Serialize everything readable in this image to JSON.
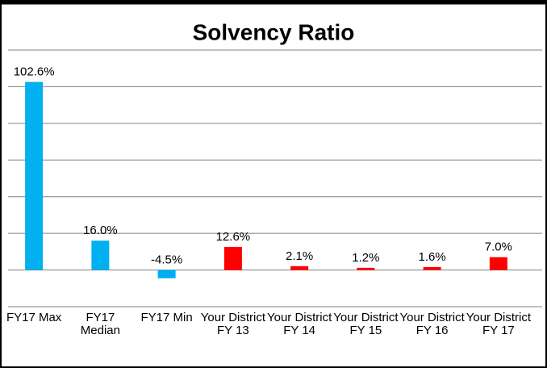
{
  "chart_data": {
    "type": "bar",
    "title": "Solvency Ratio",
    "categories": [
      "FY17 Max",
      "FY17 Median",
      "FY17 Min",
      "Your District FY 13",
      "Your District FY 14",
      "Your District FY 15",
      "Your District FY 16",
      "Your District FY 17"
    ],
    "values": [
      102.6,
      16.0,
      -4.5,
      12.6,
      2.1,
      1.2,
      1.6,
      7.0
    ],
    "value_labels": [
      "102.6%",
      "16.0%",
      "-4.5%",
      "12.6%",
      "2.1%",
      "1.2%",
      "1.6%",
      "7.0%"
    ],
    "colors": [
      "#00b0f0",
      "#00b0f0",
      "#00b0f0",
      "#ff0000",
      "#ff0000",
      "#ff0000",
      "#ff0000",
      "#ff0000"
    ],
    "ylim": [
      -20,
      120
    ],
    "yticks": [
      -20,
      0,
      20,
      40,
      60,
      80,
      100,
      120
    ],
    "grid": true
  }
}
